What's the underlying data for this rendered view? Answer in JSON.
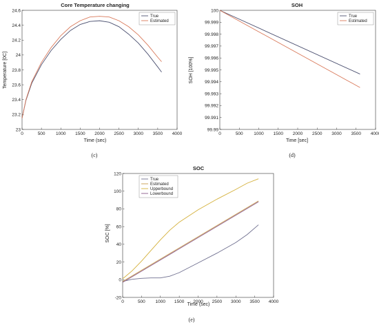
{
  "chart_data": [
    {
      "id": "c",
      "type": "line",
      "caption": "(c)",
      "title": "Core Temperature changing",
      "xlabel": "Time (sec)",
      "ylabel": "Temperature [0C]",
      "xlim": [
        0,
        4000
      ],
      "ylim": [
        23,
        24.6
      ],
      "xticks": [
        0,
        500,
        1000,
        1500,
        2000,
        2500,
        3000,
        3500,
        4000
      ],
      "yticks": [
        23,
        23.2,
        23.4,
        23.6,
        23.8,
        24,
        24.2,
        24.4,
        24.6
      ],
      "ytick_labels": [
        "23",
        "23.2",
        "23.4",
        "23.6",
        "23.8",
        "24",
        "24.2",
        "24.4",
        "24.6"
      ],
      "legend_position": "top-right",
      "grid": false,
      "series": [
        {
          "name": "True",
          "color": "#4a4f6f",
          "x": [
            0,
            100,
            250,
            500,
            750,
            1000,
            1250,
            1500,
            1750,
            2000,
            2250,
            2500,
            2750,
            3000,
            3250,
            3500,
            3600
          ],
          "y": [
            23.15,
            23.39,
            23.62,
            23.87,
            24.06,
            24.21,
            24.33,
            24.41,
            24.45,
            24.46,
            24.44,
            24.38,
            24.28,
            24.16,
            24.01,
            23.84,
            23.77
          ]
        },
        {
          "name": "Estimated",
          "color": "#d9795a",
          "x": [
            0,
            100,
            250,
            500,
            750,
            1000,
            1250,
            1500,
            1750,
            2000,
            2250,
            2500,
            2750,
            3000,
            3250,
            3500,
            3600
          ],
          "y": [
            23.15,
            23.4,
            23.64,
            23.9,
            24.1,
            24.26,
            24.38,
            24.46,
            24.51,
            24.52,
            24.51,
            24.46,
            24.38,
            24.27,
            24.13,
            23.97,
            23.91
          ]
        }
      ]
    },
    {
      "id": "d",
      "type": "line",
      "caption": "(d)",
      "title": "SOH",
      "xlabel": "Time [sec]",
      "ylabel": "SOH [100%]",
      "xlim": [
        0,
        4000
      ],
      "ylim": [
        99.99,
        100
      ],
      "xticks": [
        0,
        500,
        1000,
        1500,
        2000,
        2500,
        3000,
        3500,
        4000
      ],
      "yticks": [
        99.99,
        99.991,
        99.992,
        99.993,
        99.994,
        99.995,
        99.996,
        99.997,
        99.998,
        99.999,
        100
      ],
      "ytick_labels": [
        "99.99",
        "99.991",
        "99.992",
        "99.993",
        "99.994",
        "99.995",
        "99.996",
        "99.997",
        "99.998",
        "99.999",
        "100"
      ],
      "legend_position": "top-right",
      "grid": false,
      "series": [
        {
          "name": "True",
          "color": "#4a4f6f",
          "x": [
            0,
            3600
          ],
          "y": [
            100,
            99.99465
          ]
        },
        {
          "name": "Estimated",
          "color": "#d9795a",
          "x": [
            0,
            3600
          ],
          "y": [
            100,
            99.99352
          ]
        }
      ]
    },
    {
      "id": "e",
      "type": "line",
      "caption": "(e)",
      "title": "SOC",
      "xlabel": "Time (sec)",
      "ylabel": "SOC [%]",
      "xlim": [
        0,
        4000
      ],
      "ylim": [
        -20,
        120
      ],
      "xticks": [
        0,
        500,
        1000,
        1500,
        2000,
        2500,
        3000,
        3500,
        4000
      ],
      "yticks": [
        -20,
        0,
        20,
        40,
        60,
        80,
        100,
        120
      ],
      "ytick_labels": [
        "-20",
        "0",
        "20",
        "40",
        "60",
        "80",
        "100",
        "120"
      ],
      "legend_position": "top-left",
      "grid": false,
      "series": [
        {
          "name": "True",
          "color": "#6f6f8f",
          "x": [
            0,
            250,
            500,
            750,
            1000,
            1250,
            1500,
            2000,
            2500,
            3000,
            3300,
            3600
          ],
          "y": [
            -2,
            0.5,
            1.5,
            2,
            2,
            4,
            8,
            19,
            30,
            42,
            51,
            62
          ]
        },
        {
          "name": "Estimated",
          "color": "#c79a4a",
          "x": [
            0,
            3600
          ],
          "y": [
            -2,
            89
          ]
        },
        {
          "name": "Upperbound",
          "color": "#d4b03a",
          "x": [
            0,
            250,
            500,
            750,
            1000,
            1250,
            1500,
            2000,
            2500,
            3000,
            3300,
            3600
          ],
          "y": [
            1,
            10,
            21,
            33,
            45,
            56,
            65,
            79,
            91,
            102,
            109,
            114
          ]
        },
        {
          "name": "Lowerbound",
          "color": "#8a5a8a",
          "x": [
            0,
            3600
          ],
          "y": [
            -3,
            88
          ]
        }
      ]
    }
  ]
}
